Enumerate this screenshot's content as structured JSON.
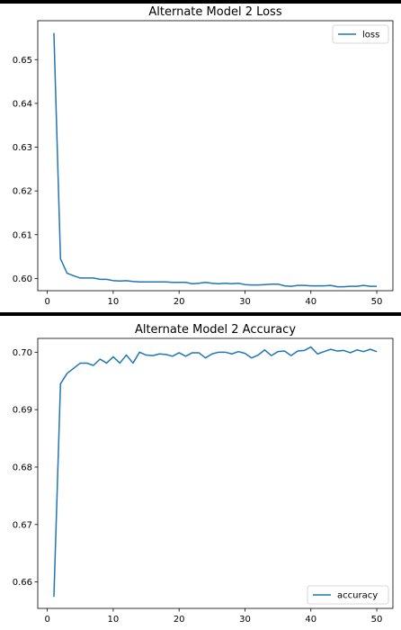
{
  "chart_data": [
    {
      "type": "line",
      "title": "Alternate Model 2 Loss",
      "xlabel": "",
      "ylabel": "",
      "xlim": [
        -1.45,
        52.45
      ],
      "ylim": [
        0.5972,
        0.6589
      ],
      "xticks": [
        0,
        10,
        20,
        30,
        40,
        50
      ],
      "yticks": [
        0.6,
        0.61,
        0.62,
        0.63,
        0.64,
        0.65
      ],
      "ytick_labels": [
        "0.60",
        "0.61",
        "0.62",
        "0.63",
        "0.64",
        "0.65"
      ],
      "grid": false,
      "legend_position": "upper right",
      "line_color": "#1f77b4",
      "series": [
        {
          "name": "loss",
          "x": [
            1,
            2,
            3,
            4,
            5,
            6,
            7,
            8,
            9,
            10,
            11,
            12,
            13,
            14,
            15,
            16,
            17,
            18,
            19,
            20,
            21,
            22,
            23,
            24,
            25,
            26,
            27,
            28,
            29,
            30,
            31,
            32,
            33,
            34,
            35,
            36,
            37,
            38,
            39,
            40,
            41,
            42,
            43,
            44,
            45,
            46,
            47,
            48,
            49,
            50
          ],
          "values": [
            0.6561,
            0.6045,
            0.6012,
            0.6006,
            0.6001,
            0.6001,
            0.6001,
            0.5998,
            0.5998,
            0.5995,
            0.5994,
            0.5995,
            0.5993,
            0.5992,
            0.5992,
            0.5992,
            0.5992,
            0.5992,
            0.5991,
            0.5991,
            0.5991,
            0.5988,
            0.5989,
            0.5991,
            0.5989,
            0.5988,
            0.5989,
            0.5988,
            0.5989,
            0.5986,
            0.5985,
            0.5985,
            0.5986,
            0.5987,
            0.5987,
            0.5983,
            0.5982,
            0.5984,
            0.5984,
            0.5983,
            0.5983,
            0.5983,
            0.5984,
            0.5981,
            0.5981,
            0.5982,
            0.5982,
            0.5984,
            0.5982,
            0.5982
          ]
        }
      ]
    },
    {
      "type": "line",
      "title": "Alternate Model 2 Accuracy",
      "xlabel": "",
      "ylabel": "",
      "xlim": [
        -1.45,
        52.45
      ],
      "ylim": [
        0.6554,
        0.7024
      ],
      "xticks": [
        0,
        10,
        20,
        30,
        40,
        50
      ],
      "yticks": [
        0.66,
        0.67,
        0.68,
        0.69,
        0.7
      ],
      "ytick_labels": [
        "0.66",
        "0.67",
        "0.68",
        "0.69",
        "0.70"
      ],
      "grid": false,
      "legend_position": "lower right",
      "line_color": "#1f77b4",
      "series": [
        {
          "name": "accuracy",
          "x": [
            1,
            2,
            3,
            4,
            5,
            6,
            7,
            8,
            9,
            10,
            11,
            12,
            13,
            14,
            15,
            16,
            17,
            18,
            19,
            20,
            21,
            22,
            23,
            24,
            25,
            26,
            27,
            28,
            29,
            30,
            31,
            32,
            33,
            34,
            35,
            36,
            37,
            38,
            39,
            40,
            41,
            42,
            43,
            44,
            45,
            46,
            47,
            48,
            49,
            50
          ],
          "values": [
            0.6574,
            0.6945,
            0.6963,
            0.6972,
            0.6981,
            0.6981,
            0.6977,
            0.6988,
            0.6981,
            0.6992,
            0.6981,
            0.6995,
            0.6981,
            0.7,
            0.6995,
            0.6994,
            0.6997,
            0.6996,
            0.6993,
            0.6999,
            0.6993,
            0.6999,
            0.6999,
            0.699,
            0.6997,
            0.7,
            0.7,
            0.6997,
            0.7001,
            0.6998,
            0.699,
            0.6995,
            0.7004,
            0.6994,
            0.7001,
            0.7002,
            0.6994,
            0.7002,
            0.7003,
            0.7009,
            0.6997,
            0.7001,
            0.7005,
            0.7002,
            0.7003,
            0.6999,
            0.7004,
            0.7001,
            0.7005,
            0.7001
          ]
        }
      ]
    }
  ]
}
